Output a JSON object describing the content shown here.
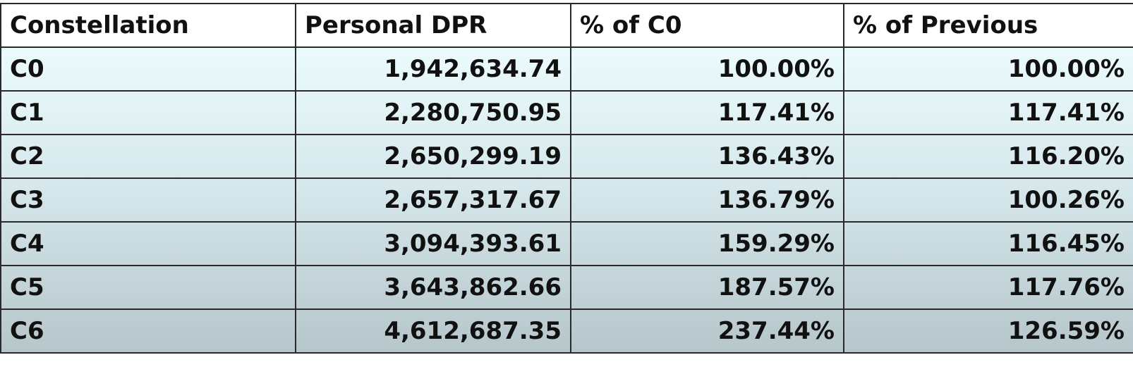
{
  "table": {
    "header": [
      "Constellation",
      "Personal DPR",
      "% of C0",
      "% of Previous"
    ],
    "rows": [
      [
        "C0",
        "1,942,634.74",
        "100.00%",
        "100.00%"
      ],
      [
        "C1",
        "2,280,750.95",
        "117.41%",
        "117.41%"
      ],
      [
        "C2",
        "2,650,299.19",
        "136.43%",
        "116.20%"
      ],
      [
        "C3",
        "2,657,317.67",
        "136.79%",
        "100.26%"
      ],
      [
        "C4",
        "3,094,393.61",
        "159.29%",
        "116.45%"
      ],
      [
        "C5",
        "3,643,862.66",
        "187.57%",
        "117.76%"
      ],
      [
        "C6",
        "4,612,687.35",
        "237.44%",
        "126.59%"
      ]
    ]
  }
}
